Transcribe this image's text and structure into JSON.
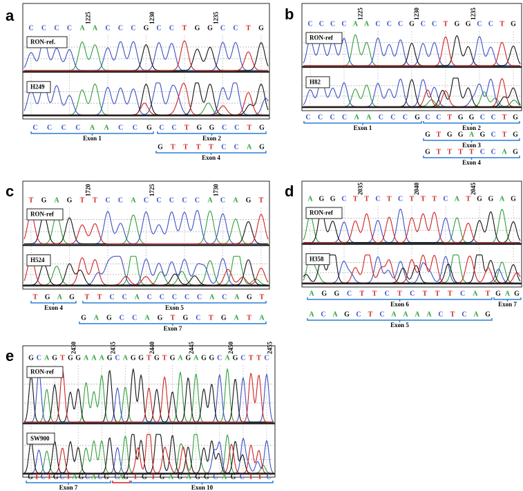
{
  "panels": [
    {
      "letter": "a",
      "positions": [
        "1225",
        "1230",
        "1235"
      ],
      "reference_sequence": [
        "C",
        "C",
        "C",
        "C",
        "A",
        "A",
        "C",
        "C",
        "C",
        "G",
        "C",
        "C",
        "T",
        "G",
        "G",
        "C",
        "C",
        "T",
        "G"
      ],
      "reference_label": "RON-ref.",
      "sample_label": "H249",
      "segments": [
        {
          "bases": [
            "C",
            "C",
            "C",
            "C",
            "A",
            "A",
            "C",
            "C",
            "G"
          ],
          "label": "Exon 1"
        },
        {
          "bases": [
            "C",
            "C",
            "T",
            "G",
            "G",
            "C",
            "C",
            "T",
            "G"
          ],
          "label": "Exon 2"
        },
        {
          "bases": [
            "G",
            "T",
            "T",
            "T",
            "T",
            "C",
            "C",
            "A",
            "G"
          ],
          "label": "Exon 4"
        }
      ]
    },
    {
      "letter": "b",
      "positions": [
        "1225",
        "1230",
        "1235"
      ],
      "reference_sequence": [
        "C",
        "C",
        "C",
        "C",
        "A",
        "A",
        "C",
        "C",
        "C",
        "G",
        "C",
        "C",
        "T",
        "G",
        "G",
        "C",
        "C",
        "T",
        "G"
      ],
      "reference_label": "RON-ref",
      "sample_label": "H82",
      "segments": [
        {
          "bases": [
            "C",
            "C",
            "C",
            "C",
            "A",
            "A",
            "C",
            "C",
            "C",
            "G"
          ],
          "label": "Exon 1"
        },
        {
          "bases": [
            "C",
            "C",
            "T",
            "G",
            "G",
            "C",
            "C",
            "T",
            "G"
          ],
          "label": "Exon 2"
        },
        {
          "bases": [
            "G",
            "T",
            "G",
            "G",
            "A",
            "G",
            "C",
            "T",
            "G"
          ],
          "label": "Exon 3"
        },
        {
          "bases": [
            "G",
            "T",
            "T",
            "T",
            "T",
            "C",
            "C",
            "A",
            "G"
          ],
          "label": "Exon 4"
        }
      ]
    },
    {
      "letter": "c",
      "positions": [
        "1720",
        "1725",
        "1730"
      ],
      "reference_sequence": [
        "T",
        "G",
        "A",
        "G",
        "T",
        "T",
        "C",
        "C",
        "A",
        "C",
        "C",
        "C",
        "C",
        "C",
        "A",
        "C",
        "A",
        "G",
        "T"
      ],
      "reference_label": "RON-ref",
      "sample_label": "H524",
      "segments": [
        {
          "bases": [
            "T",
            "G",
            "A",
            "G"
          ],
          "label": "Exon 4"
        },
        {
          "bases": [
            "T",
            "T",
            "C",
            "C",
            "A",
            "C",
            "C",
            "C",
            "C",
            "C",
            "A",
            "C",
            "A",
            "G",
            "T"
          ],
          "label": "Exon 5"
        },
        {
          "bases": [
            "G",
            "A",
            "G",
            "C",
            "C",
            "A",
            "G",
            "T",
            "G",
            "C",
            "T",
            "G",
            "A",
            "T",
            "A"
          ],
          "label": "Exon 7"
        }
      ]
    },
    {
      "letter": "d",
      "positions": [
        "2035",
        "2040",
        "2045"
      ],
      "reference_sequence": [
        "A",
        "G",
        "G",
        "C",
        "T",
        "T",
        "C",
        "T",
        "C",
        "T",
        "T",
        "T",
        "C",
        "A",
        "T",
        "G",
        "G",
        "A",
        "G"
      ],
      "reference_label": "RON-ref",
      "sample_label": "H358",
      "segments": [
        {
          "bases": [
            "A",
            "G",
            "G",
            "C",
            "T",
            "T",
            "C",
            "T",
            "C",
            "T",
            "T",
            "T",
            "C",
            "A",
            "T"
          ],
          "label": "Exon 6"
        },
        {
          "bases": [
            "G",
            "A",
            "G"
          ],
          "label": "Exon 7"
        },
        {
          "bases": [
            "A",
            "C",
            "A",
            "G",
            "C",
            "T",
            "C",
            "A",
            "A",
            "A",
            "A",
            "C",
            "T",
            "C",
            "A",
            "G"
          ],
          "label": "Exon 5"
        }
      ]
    },
    {
      "letter": "e",
      "positions": [
        "2430",
        "2435",
        "2440",
        "2445",
        "2450",
        "2455"
      ],
      "reference_sequence": [
        "G",
        "C",
        "A",
        "G",
        "T",
        "G",
        "G",
        "A",
        "A",
        "A",
        "G",
        "C",
        "A",
        "G",
        "G",
        "T",
        "G",
        "T",
        "G",
        "A",
        "G",
        "A",
        "G",
        "G",
        "C",
        "A",
        "G",
        "C",
        "T",
        "T",
        "C"
      ],
      "reference_label": "RON-ref",
      "sample_label": "SW900",
      "segments": [
        {
          "bases": [
            "G",
            "T",
            "C",
            "T",
            "G",
            "C",
            "T",
            "A",
            "G",
            "C",
            "A",
            "C",
            "G"
          ],
          "label": "Exon 7"
        },
        {
          "bases": [
            "C",
            "A",
            "G"
          ]
        },
        {
          "bases": [
            "T",
            "G",
            "T",
            "G",
            "A",
            "G",
            "A",
            "G",
            "G",
            "C",
            "A",
            "G",
            "C",
            "T",
            "T",
            "C"
          ],
          "label": "Exon 10"
        }
      ]
    }
  ]
}
